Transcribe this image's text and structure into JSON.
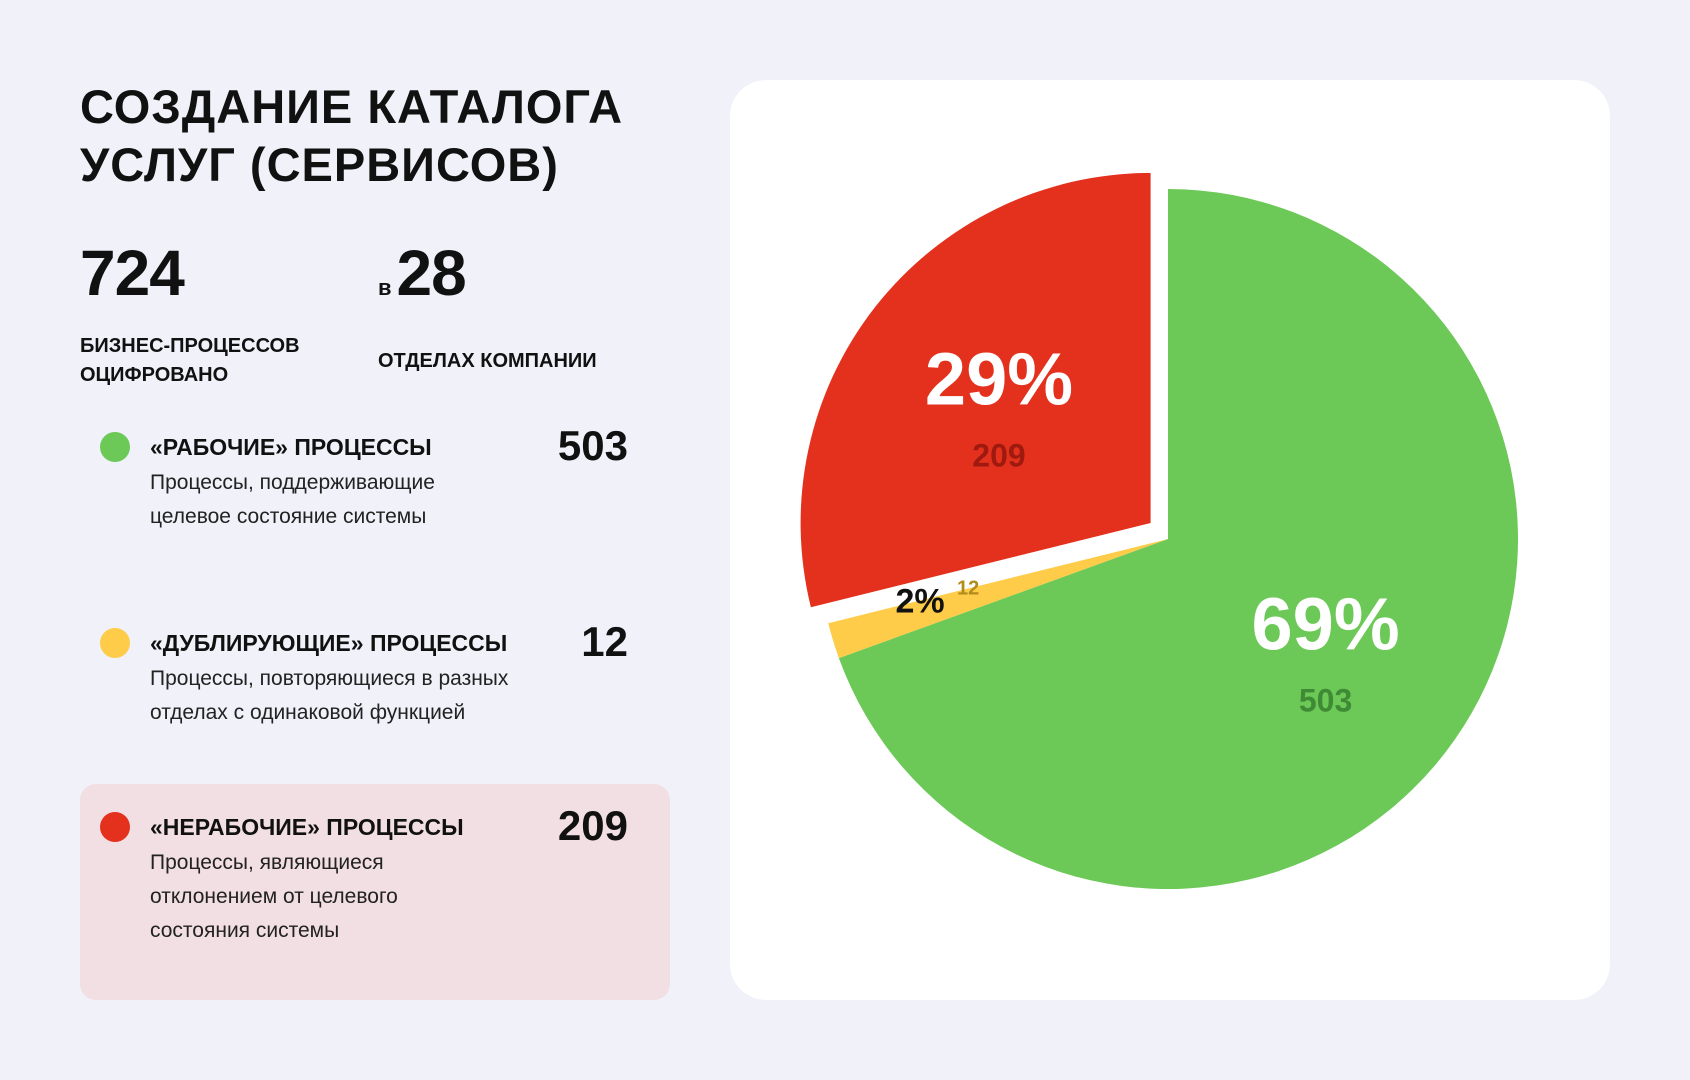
{
  "title": {
    "line1": "Создание каталога",
    "line2": "услуг (сервисов)"
  },
  "stats": {
    "processes": {
      "value": "724",
      "caption_line1": "бизнес-процессов",
      "caption_line2": "оцифровано"
    },
    "departments": {
      "prefix": "в",
      "value": "28",
      "caption": "отделах компании"
    }
  },
  "legend": [
    {
      "title": "«рабочие» процессы",
      "value": "503",
      "color": "#6cc957",
      "desc_lines": [
        "Процессы, поддерживающие",
        "целевое состояние системы"
      ]
    },
    {
      "title": "«дублирующие» процессы",
      "value": "12",
      "color": "#fecc48",
      "desc_lines": [
        "Процессы, повторяющиеся в разных",
        "отделах с одинаковой функцией"
      ]
    },
    {
      "title": "«нерабочие» процессы",
      "value": "209",
      "color": "#e3311d",
      "desc_lines": [
        "Процессы, являющиеся",
        "отклонением от целевого",
        "состояния системы"
      ]
    }
  ],
  "chart_data": {
    "type": "pie",
    "title": "",
    "slices": [
      {
        "label": "«рабочие» процессы",
        "value": 503,
        "percent": "69%",
        "count_label": "503",
        "color": "#6cc957",
        "count_color": "#3f8a34",
        "percent_color": "#ffffff"
      },
      {
        "label": "«дублирующие» процессы",
        "value": 12,
        "percent": "2%",
        "count_label": "12",
        "color": "#fecc48",
        "count_color": "#b38a1c",
        "percent_color": "#111111",
        "exploded": false
      },
      {
        "label": "«нерабочие» процессы",
        "value": 209,
        "percent": "29%",
        "count_label": "209",
        "color": "#e3311d",
        "count_color": "#9e1a0f",
        "percent_color": "#ffffff",
        "exploded": true
      }
    ]
  }
}
